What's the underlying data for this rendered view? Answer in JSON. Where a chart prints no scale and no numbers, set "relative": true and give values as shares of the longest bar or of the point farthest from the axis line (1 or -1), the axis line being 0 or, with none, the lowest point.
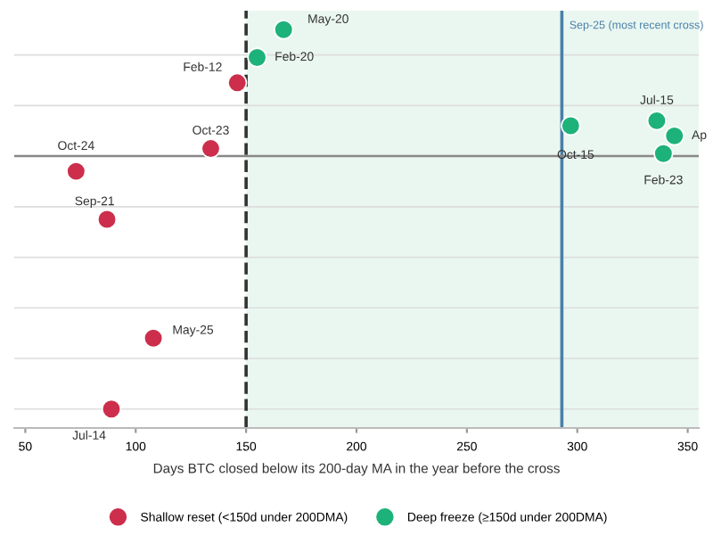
{
  "chart_data": {
    "type": "scatter",
    "relative": true,
    "xlabel": "Days BTC closed below its 200-day MA in the year before the cross",
    "xlim": [
      45,
      355
    ],
    "xticks": [
      50,
      100,
      150,
      200,
      250,
      300,
      350
    ],
    "grid": "y",
    "legend": "bottom",
    "marker": "circle",
    "series": [
      {
        "name": "Shallow reset (<150d under 200DMA)",
        "color": "#cc2e4c",
        "x": [
          146,
          134,
          73,
          87,
          108,
          89
        ],
        "values": [
          0.29,
          0.03,
          -0.06,
          -0.25,
          -0.72,
          -1
        ]
      },
      {
        "name": "Deep freeze (≥150d under 200DMA)",
        "color": "#1db27a",
        "x": [
          167,
          155,
          297,
          336,
          344,
          339
        ],
        "values": [
          0.5,
          0.39,
          0.12,
          0.14,
          0.08,
          0.01
        ]
      }
    ],
    "annotations": [
      {
        "text": "Feb-12",
        "x": 146,
        "y": 0.29
      },
      {
        "text": "Oct-23",
        "x": 134,
        "y": 0.03
      },
      {
        "text": "Oct-24",
        "x": 73,
        "y": -0.06
      },
      {
        "text": "Sep-21",
        "x": 87,
        "y": -0.25
      },
      {
        "text": "May-25",
        "x": 108,
        "y": -0.72
      },
      {
        "text": "Jul-14",
        "x": 89,
        "y": -1
      },
      {
        "text": "May-20",
        "x": 167,
        "y": 0.5
      },
      {
        "text": "Feb-20",
        "x": 155,
        "y": 0.39
      },
      {
        "text": "Oct-15",
        "x": 297,
        "y": 0.12
      },
      {
        "text": "Jul-15",
        "x": 336,
        "y": 0.14
      },
      {
        "text": "Ap",
        "x": 344,
        "y": 0.08
      },
      {
        "text": "Feb-23",
        "x": 339,
        "y": 0.01
      }
    ],
    "ref_lines": [
      {
        "axis": "x",
        "value": 150,
        "color": "#333333",
        "line_style": "dashed"
      },
      {
        "axis": "x",
        "value": 293,
        "label": "Sep-25 (most recent cross)",
        "color": "#4a7fa8",
        "line_style": "solid"
      }
    ],
    "bands": [
      {
        "axis": "x",
        "from": 150,
        "to": 355,
        "color": "#eaf7f1"
      }
    ]
  }
}
